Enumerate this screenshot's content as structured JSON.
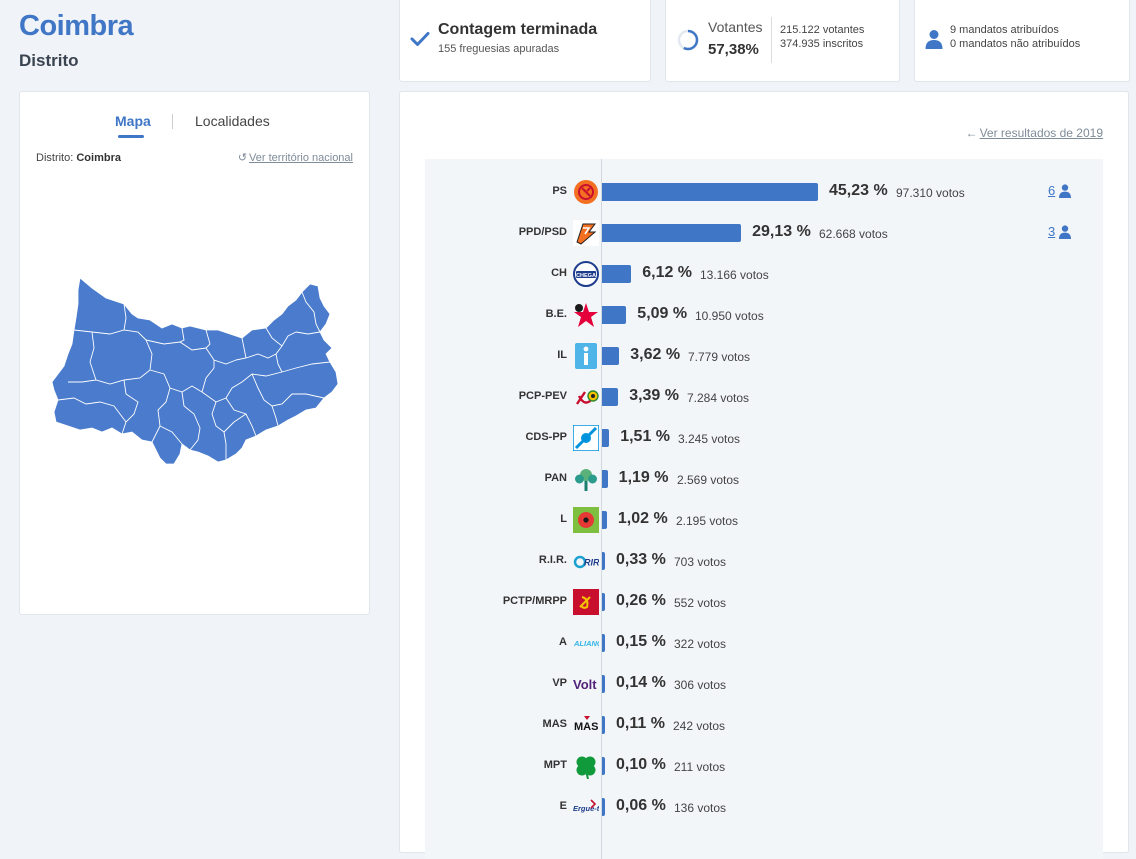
{
  "header": {
    "title": "Coimbra",
    "subtitle": "Distrito"
  },
  "status": {
    "title": "Contagem terminada",
    "subtitle": "155 freguesias apuradas"
  },
  "votantes": {
    "label": "Votantes",
    "percent": "57,38%",
    "voters": "215.122 votantes",
    "registered": "374.935 inscritos",
    "fraction": 0.5738
  },
  "mandatos": {
    "assigned": "9 mandatos atribuídos",
    "unassigned": "0 mandatos não atribuídos"
  },
  "map_panel": {
    "tab_map": "Mapa",
    "tab_places": "Localidades",
    "district_label": "Distrito:",
    "district_value": "Coimbra",
    "national_link": "Ver território nacional"
  },
  "results": {
    "previous_link": "Ver resultados de 2019",
    "parties": [
      {
        "name": "PS",
        "percent": "45,23 %",
        "votes": "97.310 votos",
        "value": 45.23,
        "seats": "6",
        "logo": "ps-logo"
      },
      {
        "name": "PPD/PSD",
        "percent": "29,13 %",
        "votes": "62.668 votos",
        "value": 29.13,
        "seats": "3",
        "logo": "psd-logo"
      },
      {
        "name": "CH",
        "percent": "6,12 %",
        "votes": "13.166 votos",
        "value": 6.12,
        "logo": "chega-logo"
      },
      {
        "name": "B.E.",
        "percent": "5,09 %",
        "votes": "10.950 votos",
        "value": 5.09,
        "logo": "be-logo"
      },
      {
        "name": "IL",
        "percent": "3,62 %",
        "votes": "7.779 votos",
        "value": 3.62,
        "logo": "il-logo"
      },
      {
        "name": "PCP-PEV",
        "percent": "3,39 %",
        "votes": "7.284 votos",
        "value": 3.39,
        "logo": "cdu-logo"
      },
      {
        "name": "CDS-PP",
        "percent": "1,51 %",
        "votes": "3.245 votos",
        "value": 1.51,
        "logo": "cds-logo"
      },
      {
        "name": "PAN",
        "percent": "1,19 %",
        "votes": "2.569 votos",
        "value": 1.19,
        "logo": "pan-logo"
      },
      {
        "name": "L",
        "percent": "1,02 %",
        "votes": "2.195 votos",
        "value": 1.02,
        "logo": "livre-logo"
      },
      {
        "name": "R.I.R.",
        "percent": "0,33 %",
        "votes": "703 votos",
        "value": 0.33,
        "logo": "rir-logo"
      },
      {
        "name": "PCTP/MRPP",
        "percent": "0,26 %",
        "votes": "552 votos",
        "value": 0.26,
        "logo": "pctp-logo"
      },
      {
        "name": "A",
        "percent": "0,15 %",
        "votes": "322 votos",
        "value": 0.15,
        "logo": "alianca-logo"
      },
      {
        "name": "VP",
        "percent": "0,14 %",
        "votes": "306 votos",
        "value": 0.14,
        "logo": "volt-logo"
      },
      {
        "name": "MAS",
        "percent": "0,11 %",
        "votes": "242 votos",
        "value": 0.11,
        "logo": "mas-logo"
      },
      {
        "name": "MPT",
        "percent": "0,10 %",
        "votes": "211 votos",
        "value": 0.1,
        "logo": "mpt-logo"
      },
      {
        "name": "E",
        "percent": "0,06 %",
        "votes": "136 votos",
        "value": 0.06,
        "logo": "ergue-te-logo"
      }
    ]
  },
  "colors": {
    "accent": "#3f76c6",
    "background": "#f0f3f7",
    "map_fill": "#4a7bcc"
  }
}
